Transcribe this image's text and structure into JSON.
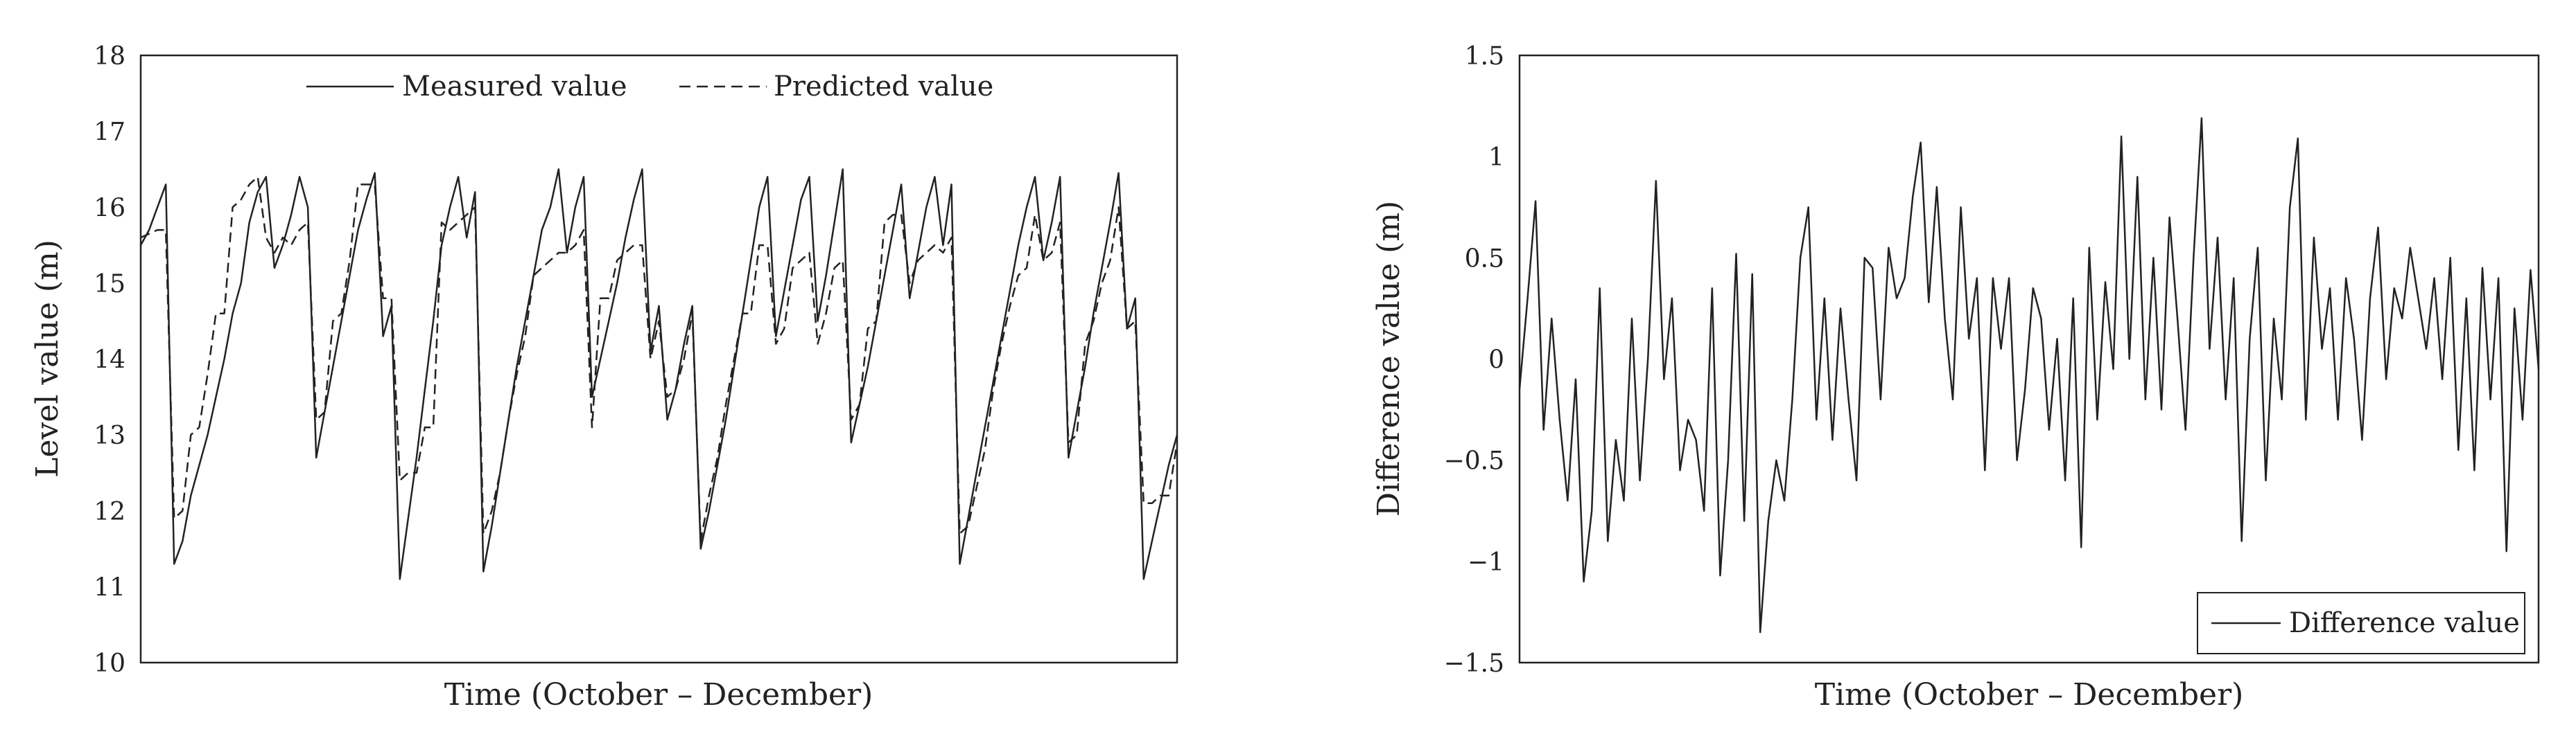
{
  "chart_data": [
    {
      "type": "line",
      "xlabel": "Time (October – December)",
      "ylabel": "Level value (m)",
      "ylim": [
        10,
        18
      ],
      "yticks": [
        "10",
        "11",
        "12",
        "13",
        "14",
        "15",
        "16",
        "17",
        "18"
      ],
      "legend": "top-center",
      "grid": false,
      "series": [
        {
          "name": "Measured value",
          "style": "solid",
          "color": "#222222",
          "values": [
            15.5,
            15.7,
            16.0,
            16.3,
            11.3,
            11.6,
            12.2,
            12.6,
            13.0,
            13.5,
            14.0,
            14.6,
            15.0,
            15.8,
            16.2,
            16.4,
            15.2,
            15.5,
            15.9,
            16.4,
            16.0,
            12.7,
            13.3,
            13.9,
            14.5,
            15.1,
            15.7,
            16.1,
            16.45,
            14.3,
            14.7,
            11.1,
            11.9,
            12.7,
            13.6,
            14.5,
            15.5,
            16.0,
            16.4,
            15.6,
            16.2,
            11.2,
            11.8,
            12.5,
            13.2,
            13.9,
            14.5,
            15.1,
            15.7,
            16.0,
            16.5,
            15.4,
            16.0,
            16.4,
            13.5,
            14.0,
            14.5,
            15.0,
            15.6,
            16.1,
            16.5,
            14.1,
            14.7,
            13.2,
            13.6,
            14.2,
            14.7,
            11.5,
            12.0,
            12.6,
            13.2,
            13.9,
            14.6,
            15.3,
            16.0,
            16.4,
            14.3,
            14.9,
            15.5,
            16.1,
            16.4,
            14.5,
            15.1,
            15.8,
            16.5,
            12.9,
            13.4,
            13.9,
            14.5,
            15.1,
            15.7,
            16.3,
            14.8,
            15.4,
            16.0,
            16.4,
            15.5,
            16.3,
            11.3,
            11.9,
            12.5,
            13.1,
            13.7,
            14.3,
            14.9,
            15.5,
            16.0,
            16.4,
            15.3,
            15.8,
            16.4,
            12.7,
            13.3,
            13.9,
            14.6,
            15.2,
            15.8,
            16.45,
            14.4,
            14.8,
            11.1,
            11.6,
            12.1,
            12.6,
            13.0
          ]
        },
        {
          "name": "Predicted value",
          "style": "dashed",
          "color": "#222222",
          "values": [
            15.6,
            15.65,
            15.7,
            15.7,
            11.9,
            12.0,
            13.0,
            13.1,
            13.8,
            14.6,
            14.6,
            16.0,
            16.1,
            16.3,
            16.4,
            15.6,
            15.4,
            15.6,
            15.5,
            15.7,
            15.8,
            13.2,
            13.3,
            14.5,
            14.6,
            15.3,
            16.3,
            16.3,
            16.3,
            14.8,
            14.8,
            12.4,
            12.5,
            12.5,
            13.1,
            13.1,
            15.8,
            15.7,
            15.8,
            15.9,
            16.0,
            11.7,
            12.0,
            12.5,
            13.2,
            13.8,
            14.3,
            15.1,
            15.2,
            15.3,
            15.4,
            15.4,
            15.5,
            15.7,
            13.1,
            14.8,
            14.8,
            15.3,
            15.4,
            15.5,
            15.5,
            14.0,
            14.5,
            13.5,
            13.6,
            14.0,
            14.6,
            11.6,
            12.2,
            12.7,
            13.4,
            14.0,
            14.6,
            14.6,
            15.5,
            15.5,
            14.2,
            14.4,
            15.2,
            15.3,
            15.4,
            14.2,
            14.6,
            15.2,
            15.3,
            13.2,
            13.4,
            14.4,
            14.5,
            15.8,
            15.9,
            15.9,
            15.0,
            15.3,
            15.4,
            15.5,
            15.4,
            15.6,
            11.7,
            11.8,
            12.3,
            12.8,
            13.6,
            14.2,
            14.7,
            15.1,
            15.2,
            15.9,
            15.3,
            15.4,
            15.8,
            12.9,
            13.0,
            14.2,
            14.5,
            15.0,
            15.3,
            16.0,
            14.4,
            14.5,
            12.1,
            12.1,
            12.2,
            12.2,
            12.9
          ]
        }
      ]
    },
    {
      "type": "line",
      "xlabel": "Time (October – December)",
      "ylabel": "Difference value (m)",
      "ylim": [
        -1.5,
        1.5
      ],
      "yticks": [
        "-1.5",
        "-1",
        "-0.5",
        "0",
        "0.5",
        "1",
        "1.5"
      ],
      "legend": "bottom-right",
      "grid": false,
      "series": [
        {
          "name": "Difference value",
          "style": "solid",
          "color": "#222222",
          "values": [
            -0.15,
            0.3,
            0.78,
            -0.35,
            0.2,
            -0.3,
            -0.7,
            -0.1,
            -1.1,
            -0.75,
            0.35,
            -0.9,
            -0.4,
            -0.7,
            0.2,
            -0.6,
            0.0,
            0.88,
            -0.1,
            0.3,
            -0.55,
            -0.3,
            -0.4,
            -0.75,
            0.35,
            -1.07,
            -0.5,
            0.52,
            -0.8,
            0.42,
            -1.35,
            -0.8,
            -0.5,
            -0.7,
            -0.2,
            0.5,
            0.75,
            -0.3,
            0.3,
            -0.4,
            0.25,
            -0.2,
            -0.6,
            0.5,
            0.45,
            -0.2,
            0.55,
            0.3,
            0.4,
            0.8,
            1.07,
            0.28,
            0.85,
            0.2,
            -0.2,
            0.75,
            0.1,
            0.4,
            -0.55,
            0.4,
            0.05,
            0.4,
            -0.5,
            -0.15,
            0.35,
            0.2,
            -0.35,
            0.1,
            -0.6,
            0.3,
            -0.93,
            0.55,
            -0.3,
            0.38,
            -0.05,
            1.1,
            0.0,
            0.9,
            -0.2,
            0.5,
            -0.25,
            0.7,
            0.2,
            -0.35,
            0.5,
            1.19,
            0.05,
            0.6,
            -0.2,
            0.4,
            -0.9,
            0.1,
            0.55,
            -0.6,
            0.2,
            -0.2,
            0.75,
            1.09,
            -0.3,
            0.6,
            0.05,
            0.35,
            -0.3,
            0.4,
            0.1,
            -0.4,
            0.3,
            0.65,
            -0.1,
            0.35,
            0.2,
            0.55,
            0.3,
            0.05,
            0.4,
            -0.1,
            0.5,
            -0.45,
            0.3,
            -0.55,
            0.45,
            -0.2,
            0.4,
            -0.95,
            0.25,
            -0.3,
            0.44,
            -0.05
          ]
        }
      ]
    }
  ]
}
